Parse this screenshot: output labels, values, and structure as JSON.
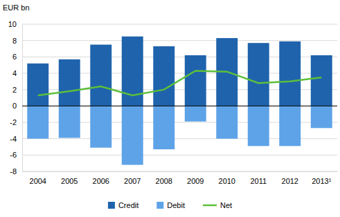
{
  "chart_data": {
    "type": "bar",
    "y_label": "EUR bn",
    "categories": [
      "2004",
      "2005",
      "2006",
      "2007",
      "2008",
      "2009",
      "2010",
      "2011",
      "2012",
      "2013¹"
    ],
    "series": [
      {
        "name": "Credit",
        "type": "bar",
        "color": "#1f63ad",
        "values": [
          5.2,
          5.7,
          7.5,
          8.5,
          7.3,
          6.2,
          8.3,
          7.7,
          7.9,
          6.2
        ]
      },
      {
        "name": "Debit",
        "type": "bar",
        "color": "#5ea3e8",
        "values": [
          -4.0,
          -3.9,
          -5.1,
          -7.2,
          -5.3,
          -1.9,
          -4.0,
          -4.9,
          -4.9,
          -2.7
        ]
      },
      {
        "name": "Net",
        "type": "line",
        "color": "#5cbf3a",
        "line_style": "solid",
        "values": [
          1.3,
          1.8,
          2.4,
          1.3,
          2.0,
          4.3,
          4.2,
          2.8,
          3.0,
          3.5
        ]
      }
    ],
    "stacked": true,
    "ylim": [
      -8,
      10
    ],
    "yticks": [
      -8,
      -6,
      -4,
      -2,
      0,
      2,
      4,
      6,
      8,
      10
    ],
    "grid": true,
    "legend": "bottom"
  }
}
